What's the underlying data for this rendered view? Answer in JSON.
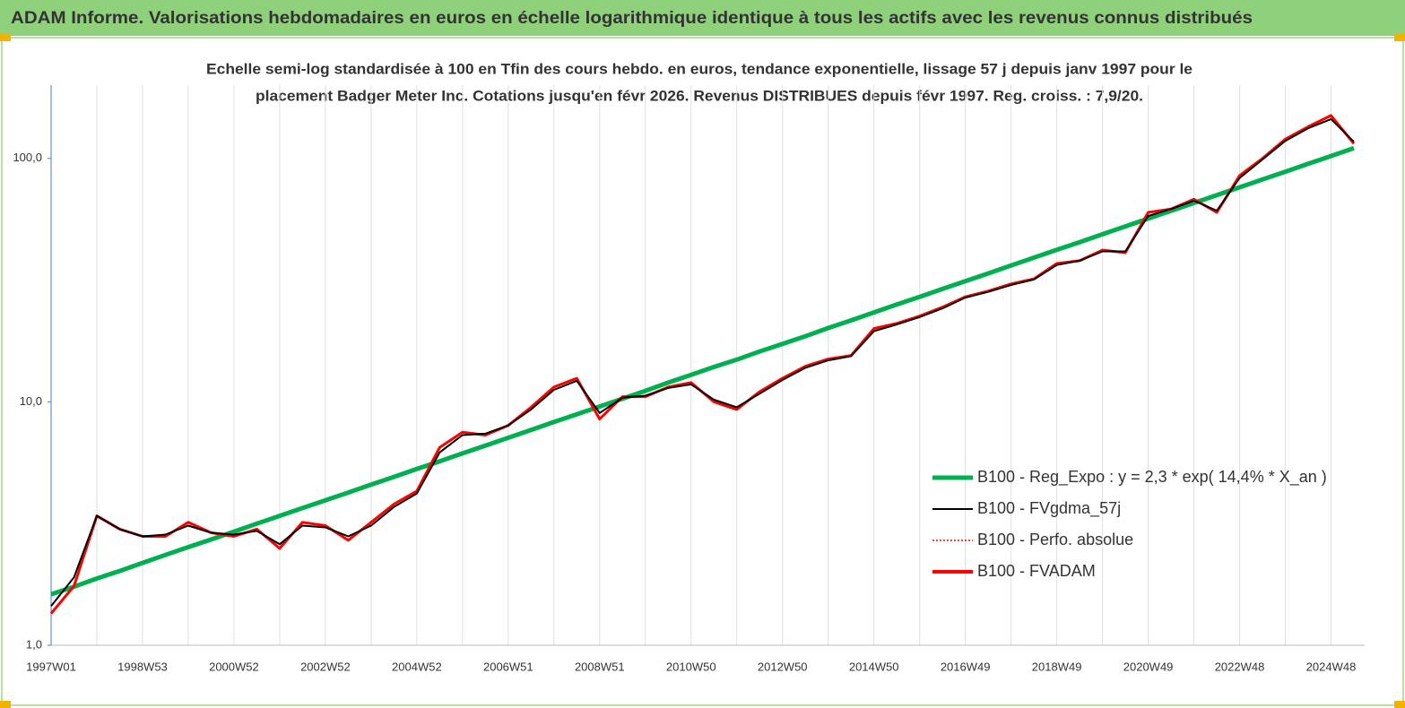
{
  "header": {
    "title": "ADAM Informe. Valorisations hebdomadaires en euros en échelle logarithmique identique à tous les actifs avec les revenus connus distribués"
  },
  "chart_data": {
    "type": "line",
    "subtitle": [
      "Echelle semi-log standardisée à 100 en Tfin des cours hebdo. en euros, tendance exponentielle, lissage 57 j depuis janv 1997 pour le",
      "placement Badger Meter Inc. Cotations jusqu'en févr 2026. Revenus DISTRIBUES depuis févr 1997. Reg. croiss. : 7,9/20."
    ],
    "log_scale": true,
    "grid": true,
    "legend": "lower right",
    "categories": [
      "1997W01",
      null,
      null,
      null,
      "1998W53",
      null,
      null,
      null,
      "2000W52",
      null,
      null,
      null,
      "2002W52",
      null,
      null,
      null,
      "2004W52",
      null,
      null,
      null,
      "2006W51",
      null,
      null,
      null,
      "2008W51",
      null,
      null,
      null,
      "2010W50",
      null,
      null,
      null,
      "2012W50",
      null,
      null,
      null,
      "2014W50",
      null,
      null,
      null,
      "2016W49",
      null,
      null,
      null,
      "2018W49",
      null,
      null,
      null,
      "2020W49",
      null,
      null,
      null,
      "2022W48",
      null,
      null,
      null,
      "2024W48",
      null
    ],
    "ylim": [
      1,
      200
    ],
    "yticks": [
      {
        "value": 1,
        "label": "1,0"
      },
      {
        "value": 10,
        "label": "10,0"
      },
      {
        "value": 100,
        "label": "100,0"
      }
    ],
    "series": [
      {
        "name": "B100 - Reg_Expo : y = 2,3 * exp( 14,4% *  X_an )",
        "color": "#00b050",
        "values": [
          1.62,
          1.74,
          1.88,
          2.02,
          2.18,
          2.35,
          2.53,
          2.72,
          2.93,
          3.16,
          3.4,
          3.66,
          3.94,
          4.24,
          4.57,
          4.92,
          5.3,
          5.7,
          6.14,
          6.61,
          7.12,
          7.67,
          8.26,
          8.89,
          9.57,
          10.3,
          11.1,
          12.0,
          12.9,
          13.9,
          14.9,
          16.1,
          17.3,
          18.6,
          20.1,
          21.6,
          23.3,
          25.1,
          27.0,
          29.1,
          31.3,
          33.7,
          36.3,
          39.1,
          42.1,
          45.3,
          48.8,
          52.6,
          56.6,
          60.9,
          65.6,
          70.7,
          76.1,
          81.9,
          88.2,
          95.0,
          102.3,
          110.2
        ]
      },
      {
        "name": "B100 - FVgdma_57j",
        "color": "#000000",
        "values": [
          1.45,
          1.9,
          3.4,
          3.0,
          2.8,
          2.85,
          3.1,
          2.9,
          2.85,
          2.95,
          2.6,
          3.1,
          3.05,
          2.8,
          3.1,
          3.7,
          4.2,
          6.2,
          7.3,
          7.4,
          8.0,
          9.3,
          11.2,
          12.2,
          9.0,
          10.4,
          10.6,
          11.4,
          11.8,
          10.2,
          9.5,
          10.8,
          12.3,
          13.8,
          14.8,
          15.4,
          19.5,
          20.8,
          22.3,
          24.2,
          26.8,
          28.3,
          30.2,
          31.8,
          36.5,
          38.0,
          41.5,
          41.5,
          58.0,
          62.0,
          67.0,
          61.0,
          83.0,
          99.0,
          118.0,
          133.0,
          145.0,
          117.0
        ]
      },
      {
        "name": "B100 - Perfo. absolue",
        "color": "#ff0000",
        "dash": true,
        "values": [
          1.35,
          1.75,
          3.4,
          3.0,
          2.8,
          2.8,
          3.2,
          2.9,
          2.8,
          3.0,
          2.5,
          3.2,
          3.1,
          2.7,
          3.2,
          3.8,
          4.3,
          6.5,
          7.5,
          7.3,
          8.0,
          9.5,
          11.5,
          12.5,
          8.5,
          10.5,
          10.5,
          11.5,
          12.0,
          10.0,
          9.3,
          11.0,
          12.5,
          14.0,
          15.0,
          15.5,
          20.0,
          21.0,
          22.5,
          24.5,
          27.0,
          28.5,
          30.5,
          32.0,
          37.0,
          38.0,
          42.0,
          41.0,
          60.0,
          62.0,
          68.0,
          60.0,
          85.0,
          100.0,
          120.0,
          135.0,
          150.0,
          115.0
        ]
      },
      {
        "name": "B100 - FVADAM",
        "color": "#ff0000",
        "values": [
          1.35,
          1.75,
          3.4,
          3.0,
          2.8,
          2.8,
          3.2,
          2.9,
          2.8,
          3.0,
          2.5,
          3.2,
          3.1,
          2.7,
          3.2,
          3.8,
          4.3,
          6.5,
          7.5,
          7.3,
          8.0,
          9.5,
          11.5,
          12.5,
          8.5,
          10.5,
          10.5,
          11.5,
          12.0,
          10.0,
          9.3,
          11.0,
          12.5,
          14.0,
          15.0,
          15.5,
          20.0,
          21.0,
          22.5,
          24.5,
          27.0,
          28.5,
          30.5,
          32.0,
          37.0,
          38.0,
          42.0,
          41.0,
          60.0,
          62.0,
          68.0,
          60.0,
          85.0,
          100.0,
          120.0,
          135.0,
          150.0,
          115.0
        ]
      }
    ]
  }
}
